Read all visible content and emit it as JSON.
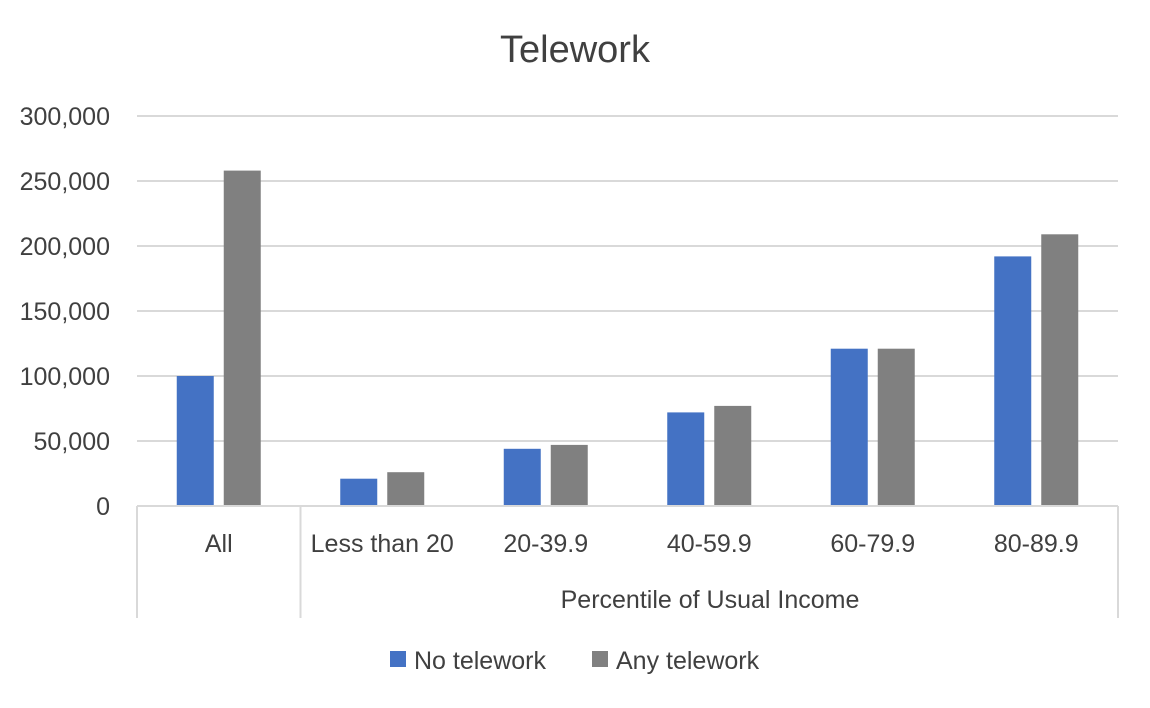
{
  "chart_data": {
    "type": "bar",
    "title": "Telework",
    "xlabel": "Percentile of Usual Income",
    "ylabel": "",
    "group_labels": [
      "",
      "Percentile of Usual Income"
    ],
    "categories": [
      "All",
      "Less than 20",
      "20-39.9",
      "40-59.9",
      "60-79.9",
      "80-89.9"
    ],
    "series": [
      {
        "name": "No telework",
        "color": "#4472C4",
        "values": [
          100000,
          21000,
          44000,
          72000,
          121000,
          192000
        ]
      },
      {
        "name": "Any telework",
        "color": "#808080",
        "values": [
          258000,
          26000,
          47000,
          77000,
          121000,
          209000
        ]
      }
    ],
    "ylim": [
      0,
      300000
    ],
    "yticks": [
      "0",
      "50,000",
      "100,000",
      "150,000",
      "200,000",
      "250,000",
      "300,000"
    ],
    "grid": true,
    "legend": "bottom"
  }
}
